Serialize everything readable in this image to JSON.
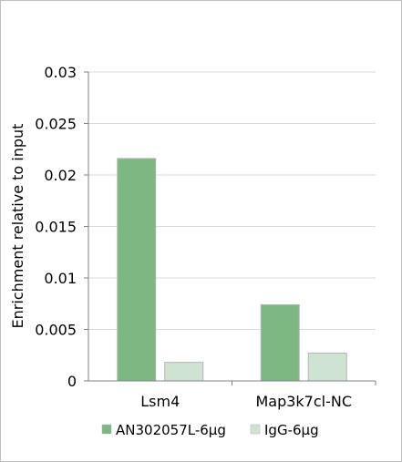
{
  "chart_data": {
    "type": "bar",
    "title": "",
    "xlabel": "",
    "ylabel": "Enrichment relative to input",
    "ylim": [
      0,
      0.03
    ],
    "yticks": [
      "0",
      "0.005",
      "0.01",
      "0.015",
      "0.02",
      "0.025",
      "0.03"
    ],
    "grid": true,
    "legend_position": "bottom",
    "categories": [
      "Lsm4",
      "Map3k7cl-NC"
    ],
    "series": [
      {
        "name": "AN302057L-6μg",
        "values": [
          0.0216,
          0.0074
        ],
        "color": "#7db882"
      },
      {
        "name": "IgG-6μg",
        "values": [
          0.0018,
          0.0027
        ],
        "color": "#cfe3d2"
      }
    ]
  }
}
